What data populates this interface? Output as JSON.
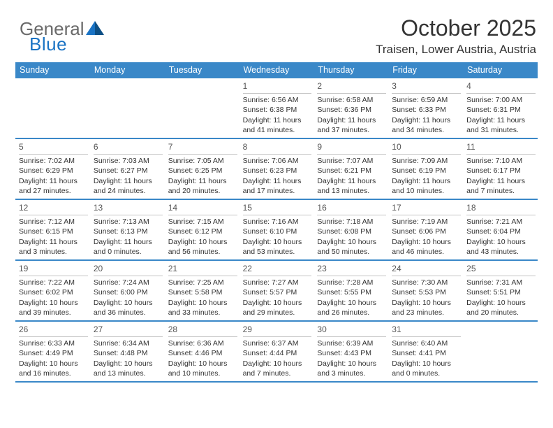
{
  "brand": {
    "word1": "General",
    "word2": "Blue"
  },
  "title": "October 2025",
  "location": "Traisen, Lower Austria, Austria",
  "colors": {
    "header_bg": "#3a88c8",
    "header_text": "#ffffff",
    "rule": "#3a88c8",
    "daynum": "#555555",
    "body_text": "#333333",
    "logo_gray": "#6a6a6a",
    "logo_blue": "#1a73c4"
  },
  "weekdays": [
    "Sunday",
    "Monday",
    "Tuesday",
    "Wednesday",
    "Thursday",
    "Friday",
    "Saturday"
  ],
  "weeks": [
    [
      null,
      null,
      null,
      {
        "n": "1",
        "sr": "6:56 AM",
        "ss": "6:38 PM",
        "dl1": "11 hours",
        "dl2": "and 41 minutes."
      },
      {
        "n": "2",
        "sr": "6:58 AM",
        "ss": "6:36 PM",
        "dl1": "11 hours",
        "dl2": "and 37 minutes."
      },
      {
        "n": "3",
        "sr": "6:59 AM",
        "ss": "6:33 PM",
        "dl1": "11 hours",
        "dl2": "and 34 minutes."
      },
      {
        "n": "4",
        "sr": "7:00 AM",
        "ss": "6:31 PM",
        "dl1": "11 hours",
        "dl2": "and 31 minutes."
      }
    ],
    [
      {
        "n": "5",
        "sr": "7:02 AM",
        "ss": "6:29 PM",
        "dl1": "11 hours",
        "dl2": "and 27 minutes."
      },
      {
        "n": "6",
        "sr": "7:03 AM",
        "ss": "6:27 PM",
        "dl1": "11 hours",
        "dl2": "and 24 minutes."
      },
      {
        "n": "7",
        "sr": "7:05 AM",
        "ss": "6:25 PM",
        "dl1": "11 hours",
        "dl2": "and 20 minutes."
      },
      {
        "n": "8",
        "sr": "7:06 AM",
        "ss": "6:23 PM",
        "dl1": "11 hours",
        "dl2": "and 17 minutes."
      },
      {
        "n": "9",
        "sr": "7:07 AM",
        "ss": "6:21 PM",
        "dl1": "11 hours",
        "dl2": "and 13 minutes."
      },
      {
        "n": "10",
        "sr": "7:09 AM",
        "ss": "6:19 PM",
        "dl1": "11 hours",
        "dl2": "and 10 minutes."
      },
      {
        "n": "11",
        "sr": "7:10 AM",
        "ss": "6:17 PM",
        "dl1": "11 hours",
        "dl2": "and 7 minutes."
      }
    ],
    [
      {
        "n": "12",
        "sr": "7:12 AM",
        "ss": "6:15 PM",
        "dl1": "11 hours",
        "dl2": "and 3 minutes."
      },
      {
        "n": "13",
        "sr": "7:13 AM",
        "ss": "6:13 PM",
        "dl1": "11 hours",
        "dl2": "and 0 minutes."
      },
      {
        "n": "14",
        "sr": "7:15 AM",
        "ss": "6:12 PM",
        "dl1": "10 hours",
        "dl2": "and 56 minutes."
      },
      {
        "n": "15",
        "sr": "7:16 AM",
        "ss": "6:10 PM",
        "dl1": "10 hours",
        "dl2": "and 53 minutes."
      },
      {
        "n": "16",
        "sr": "7:18 AM",
        "ss": "6:08 PM",
        "dl1": "10 hours",
        "dl2": "and 50 minutes."
      },
      {
        "n": "17",
        "sr": "7:19 AM",
        "ss": "6:06 PM",
        "dl1": "10 hours",
        "dl2": "and 46 minutes."
      },
      {
        "n": "18",
        "sr": "7:21 AM",
        "ss": "6:04 PM",
        "dl1": "10 hours",
        "dl2": "and 43 minutes."
      }
    ],
    [
      {
        "n": "19",
        "sr": "7:22 AM",
        "ss": "6:02 PM",
        "dl1": "10 hours",
        "dl2": "and 39 minutes."
      },
      {
        "n": "20",
        "sr": "7:24 AM",
        "ss": "6:00 PM",
        "dl1": "10 hours",
        "dl2": "and 36 minutes."
      },
      {
        "n": "21",
        "sr": "7:25 AM",
        "ss": "5:58 PM",
        "dl1": "10 hours",
        "dl2": "and 33 minutes."
      },
      {
        "n": "22",
        "sr": "7:27 AM",
        "ss": "5:57 PM",
        "dl1": "10 hours",
        "dl2": "and 29 minutes."
      },
      {
        "n": "23",
        "sr": "7:28 AM",
        "ss": "5:55 PM",
        "dl1": "10 hours",
        "dl2": "and 26 minutes."
      },
      {
        "n": "24",
        "sr": "7:30 AM",
        "ss": "5:53 PM",
        "dl1": "10 hours",
        "dl2": "and 23 minutes."
      },
      {
        "n": "25",
        "sr": "7:31 AM",
        "ss": "5:51 PM",
        "dl1": "10 hours",
        "dl2": "and 20 minutes."
      }
    ],
    [
      {
        "n": "26",
        "sr": "6:33 AM",
        "ss": "4:49 PM",
        "dl1": "10 hours",
        "dl2": "and 16 minutes."
      },
      {
        "n": "27",
        "sr": "6:34 AM",
        "ss": "4:48 PM",
        "dl1": "10 hours",
        "dl2": "and 13 minutes."
      },
      {
        "n": "28",
        "sr": "6:36 AM",
        "ss": "4:46 PM",
        "dl1": "10 hours",
        "dl2": "and 10 minutes."
      },
      {
        "n": "29",
        "sr": "6:37 AM",
        "ss": "4:44 PM",
        "dl1": "10 hours",
        "dl2": "and 7 minutes."
      },
      {
        "n": "30",
        "sr": "6:39 AM",
        "ss": "4:43 PM",
        "dl1": "10 hours",
        "dl2": "and 3 minutes."
      },
      {
        "n": "31",
        "sr": "6:40 AM",
        "ss": "4:41 PM",
        "dl1": "10 hours",
        "dl2": "and 0 minutes."
      },
      null
    ]
  ],
  "labels": {
    "sunrise_prefix": "Sunrise: ",
    "sunset_prefix": "Sunset: ",
    "daylight_prefix": "Daylight: "
  }
}
